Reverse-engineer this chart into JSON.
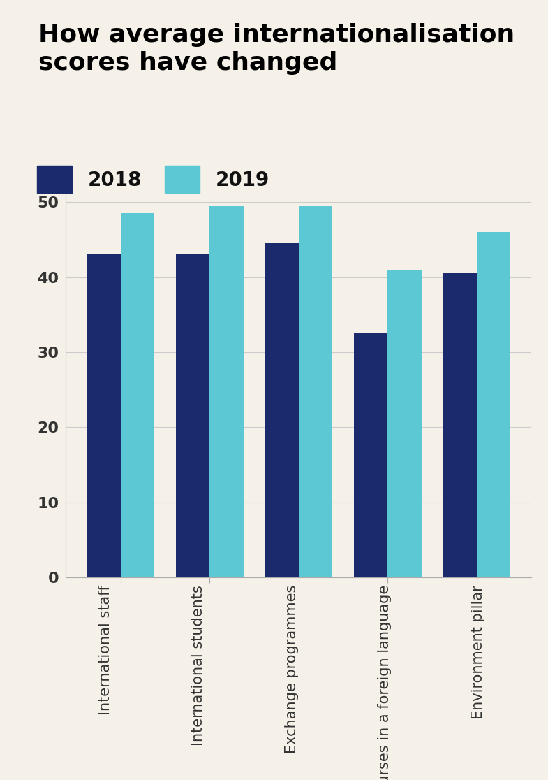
{
  "title_line1": "How average internationalisation",
  "title_line2": "scores have changed",
  "categories": [
    "International staff",
    "International students",
    "Exchange programmes",
    "Courses in a foreign language",
    "Environment pillar"
  ],
  "values_2018": [
    43,
    43,
    44.5,
    32.5,
    40.5
  ],
  "values_2019": [
    48.5,
    49.5,
    49.5,
    41,
    46
  ],
  "color_2018": "#1a2a6c",
  "color_2019": "#5bc8d4",
  "background_color": "#f5f0e8",
  "ylim": [
    0,
    52
  ],
  "yticks": [
    0,
    10,
    20,
    30,
    40,
    50
  ],
  "legend_2018": "2018",
  "legend_2019": "2019",
  "title_fontsize": 26,
  "tick_fontsize": 16,
  "label_fontsize": 15,
  "legend_fontsize": 20
}
